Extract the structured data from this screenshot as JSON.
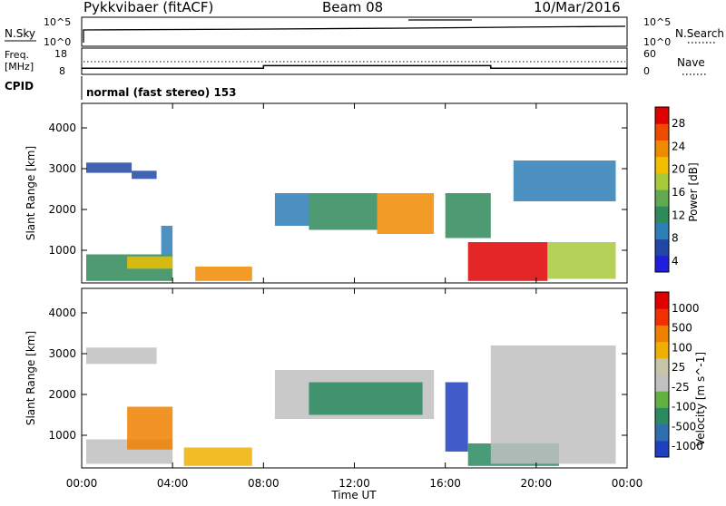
{
  "header": {
    "station": "Pykkvibaer (fitACF)",
    "beam": "Beam 08",
    "date": "10/Mar/2016"
  },
  "nsky_panel": {
    "left_label": "N.Sky",
    "left_ticks": [
      "10^5",
      "10^0"
    ],
    "right_ticks": [
      "10^5",
      "10^0"
    ],
    "right_label": "N.Search",
    "right_line": "dotted"
  },
  "freq_panel": {
    "left_label_1": "Freq.",
    "left_label_2": "[MHz]",
    "left_ticks": [
      "18",
      "8"
    ],
    "right_ticks": [
      "60",
      "0"
    ],
    "right_label": "Nave",
    "right_line": "dotted",
    "freq_steps": [
      {
        "t": 0.0,
        "mhz": 10.3
      },
      {
        "t": 8.0,
        "mhz": 11.3
      },
      {
        "t": 18.0,
        "mhz": 10.3
      },
      {
        "t": 24.0,
        "mhz": 10.3
      }
    ]
  },
  "cpid_panel": {
    "label": "CPID",
    "text": "normal (fast stereo) 153"
  },
  "colors": {
    "power_scale": [
      "#1e1edc",
      "#2147a6",
      "#2e7eb8",
      "#2f8a5a",
      "#62a850",
      "#a8c93a",
      "#f0c000",
      "#f08a00",
      "#f04a00",
      "#e00000"
    ],
    "velocity_scale": [
      "#2040c0",
      "#2f6fb0",
      "#2a8a60",
      "#62b040",
      "#c0c0c0",
      "#c8c4a8",
      "#f0b000",
      "#f08000",
      "#f03000",
      "#e00000"
    ]
  },
  "chart_data": [
    {
      "type": "heatmap",
      "title": "Power",
      "xlabel": "",
      "ylabel": "Slant Range [km]",
      "colorbar_label": "Power [dB]",
      "colorbar_ticks": [
        "28",
        "24",
        "20",
        "16",
        "12",
        "8",
        "4"
      ],
      "xlim": [
        0,
        24
      ],
      "ylim": [
        200,
        4600
      ],
      "yticks": [
        "4000",
        "3000",
        "2000",
        "1000"
      ],
      "yticks_values": [
        4000,
        3000,
        2000,
        1000
      ],
      "xticks": [
        "00:00",
        "04:00",
        "08:00",
        "12:00",
        "16:00",
        "20:00",
        "00:00"
      ],
      "regions": [
        {
          "t0": 0.2,
          "t1": 2.2,
          "r0": 2900,
          "r1": 3150,
          "level": 1
        },
        {
          "t0": 2.2,
          "t1": 3.3,
          "r0": 2750,
          "r1": 2950,
          "level": 1
        },
        {
          "t0": 0.2,
          "t1": 4.0,
          "r0": 250,
          "r1": 900,
          "level": 3
        },
        {
          "t0": 2.0,
          "t1": 4.0,
          "r0": 550,
          "r1": 850,
          "level": 6
        },
        {
          "t0": 3.5,
          "t1": 4.0,
          "r0": 900,
          "r1": 1600,
          "level": 2
        },
        {
          "t0": 5.0,
          "t1": 7.5,
          "r0": 250,
          "r1": 600,
          "level": 7
        },
        {
          "t0": 8.5,
          "t1": 10.0,
          "r0": 1600,
          "r1": 2400,
          "level": 2
        },
        {
          "t0": 10.0,
          "t1": 13.0,
          "r0": 1500,
          "r1": 2400,
          "level": 3
        },
        {
          "t0": 13.0,
          "t1": 15.5,
          "r0": 1400,
          "r1": 2400,
          "level": 7
        },
        {
          "t0": 16.0,
          "t1": 18.0,
          "r0": 1300,
          "r1": 2400,
          "level": 3
        },
        {
          "t0": 17.0,
          "t1": 20.5,
          "r0": 250,
          "r1": 1200,
          "level": 9
        },
        {
          "t0": 19.0,
          "t1": 23.5,
          "r0": 2200,
          "r1": 3200,
          "level": 2
        },
        {
          "t0": 20.5,
          "t1": 23.5,
          "r0": 300,
          "r1": 1200,
          "level": 5
        }
      ]
    },
    {
      "type": "heatmap",
      "title": "Velocity",
      "xlabel": "Time UT",
      "ylabel": "Slant Range [km]",
      "colorbar_label": "Velocity [m s^-1]",
      "colorbar_ticks": [
        "1000",
        "500",
        "100",
        "25",
        "-25",
        "-100",
        "-500",
        "-1000"
      ],
      "xlim": [
        0,
        24
      ],
      "ylim": [
        200,
        4600
      ],
      "yticks": [
        "4000",
        "3000",
        "2000",
        "1000"
      ],
      "yticks_values": [
        4000,
        3000,
        2000,
        1000
      ],
      "xticks": [
        "00:00",
        "04:00",
        "08:00",
        "12:00",
        "16:00",
        "20:00",
        "00:00"
      ],
      "regions": [
        {
          "t0": 0.2,
          "t1": 3.3,
          "r0": 2750,
          "r1": 3150,
          "level": 4
        },
        {
          "t0": 0.2,
          "t1": 4.0,
          "r0": 300,
          "r1": 900,
          "level": 4
        },
        {
          "t0": 2.0,
          "t1": 4.0,
          "r0": 650,
          "r1": 1700,
          "level": 7
        },
        {
          "t0": 4.5,
          "t1": 7.5,
          "r0": 250,
          "r1": 700,
          "level": 6
        },
        {
          "t0": 8.5,
          "t1": 15.5,
          "r0": 1400,
          "r1": 2600,
          "level": 4
        },
        {
          "t0": 10.0,
          "t1": 15.0,
          "r0": 1500,
          "r1": 2300,
          "level": 2
        },
        {
          "t0": 16.0,
          "t1": 17.0,
          "r0": 600,
          "r1": 2300,
          "level": 0
        },
        {
          "t0": 17.0,
          "t1": 21.0,
          "r0": 250,
          "r1": 800,
          "level": 2
        },
        {
          "t0": 18.0,
          "t1": 23.5,
          "r0": 300,
          "r1": 3200,
          "level": 4
        }
      ]
    }
  ]
}
